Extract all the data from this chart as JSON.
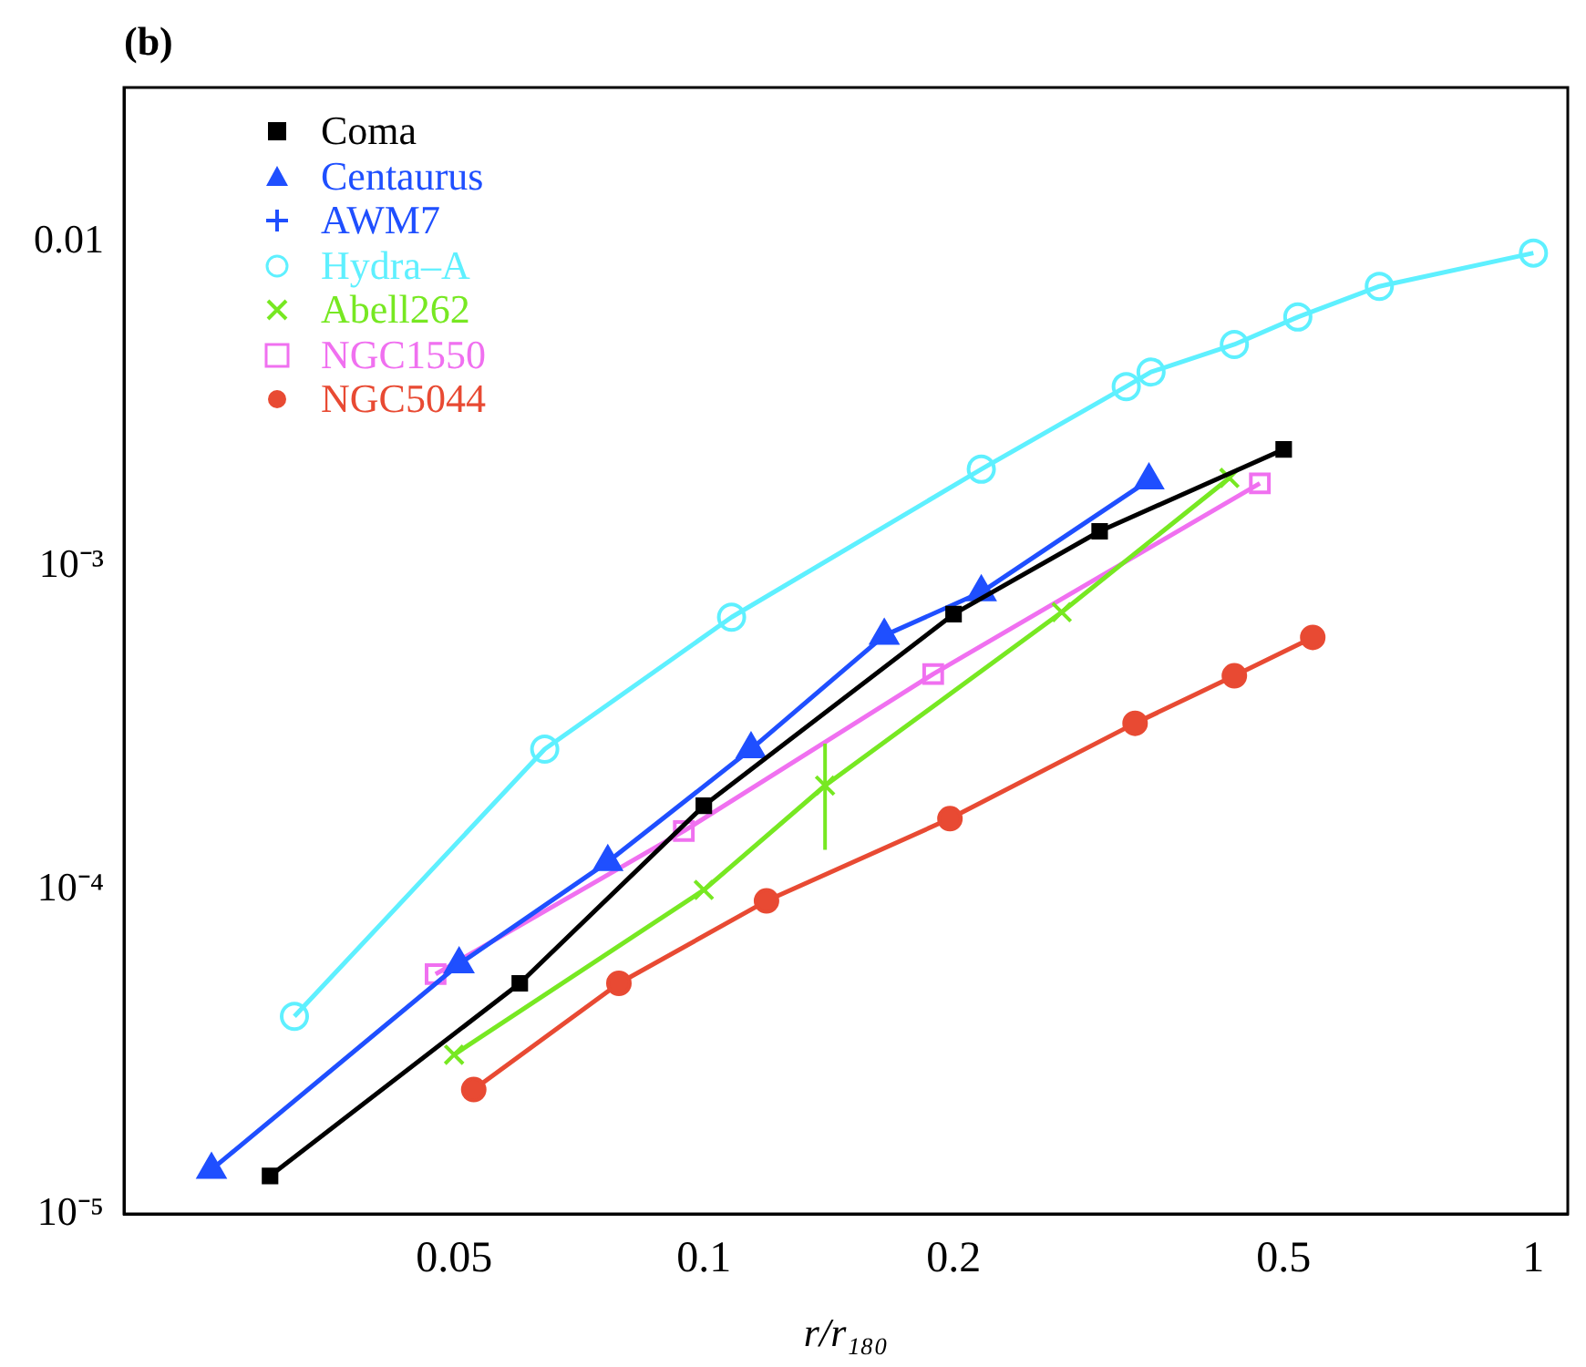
{
  "chart_data": {
    "type": "line",
    "xlabel": "r/r₁₈₀",
    "annotations": [
      "(b)"
    ],
    "log": "xy",
    "xlim": [
      0.02,
      1.1
    ],
    "ylim": [
      1e-05,
      0.03
    ],
    "xticks": [
      0.05,
      0.1,
      0.2,
      0.5,
      1
    ],
    "yticks": [
      {
        "value": 1e-05,
        "label": "10⁻⁵"
      },
      {
        "value": 0.0001,
        "label": "10⁻⁴"
      },
      {
        "value": 0.001,
        "label": "10⁻³"
      },
      0.01
    ],
    "grid": false,
    "legend": "top left",
    "line_style": "solid",
    "series": [
      {
        "name": "Coma",
        "color": "#000000",
        "marker": "square",
        "x": [
          0.03,
          0.06,
          0.1,
          0.2,
          0.3,
          0.5
        ],
        "values": [
          1.31e-05,
          5.15e-05,
          0.000182,
          0.00071,
          0.00128,
          0.00229
        ]
      },
      {
        "name": "Centaurus",
        "color": "#1f4fff",
        "marker": "triangle",
        "x": [
          0.0255,
          0.0507,
          0.0766,
          0.114,
          0.165,
          0.216,
          0.344
        ],
        "values": [
          1.37e-05,
          5.9e-05,
          0.000122,
          0.000272,
          0.00061,
          0.00083,
          0.00184
        ]
      },
      {
        "name": "AWM7",
        "color": "#1f4fff",
        "marker": "cross"
      },
      {
        "name": "Hydra–A",
        "color": "#5ef0ff",
        "marker": "circle_open",
        "x": [
          0.0321,
          0.0643,
          0.108,
          0.216,
          0.323,
          0.346,
          0.436,
          0.52,
          0.652,
          1.0
        ],
        "values": [
          4.07e-05,
          0.000272,
          0.000695,
          0.00199,
          0.00358,
          0.00397,
          0.00483,
          0.00587,
          0.0073,
          0.00925
        ]
      },
      {
        "name": "Abell262",
        "color": "#77e822",
        "marker": "x",
        "x": [
          0.05,
          0.1,
          0.14,
          0.27,
          0.43
        ],
        "values": [
          3.1e-05,
          0.0001,
          0.00021,
          0.00072,
          0.00187
        ],
        "errors": [
          null,
          null,
          [
            0.000133,
            0.000283
          ],
          null,
          null
        ]
      },
      {
        "name": "NGC1550",
        "color": "#f070f0",
        "marker": "square_open",
        "x": [
          0.0475,
          0.0946,
          0.189,
          0.468
        ],
        "values": [
          5.5e-05,
          0.000152,
          0.000464,
          0.0018
        ]
      },
      {
        "name": "NGC5044",
        "color": "#e84a33",
        "marker": "circle",
        "x": [
          0.0528,
          0.079,
          0.119,
          0.198,
          0.331,
          0.436,
          0.542
        ],
        "values": [
          2.42e-05,
          5.15e-05,
          9.25e-05,
          0.000166,
          0.000327,
          0.000458,
          0.000602
        ]
      }
    ]
  }
}
